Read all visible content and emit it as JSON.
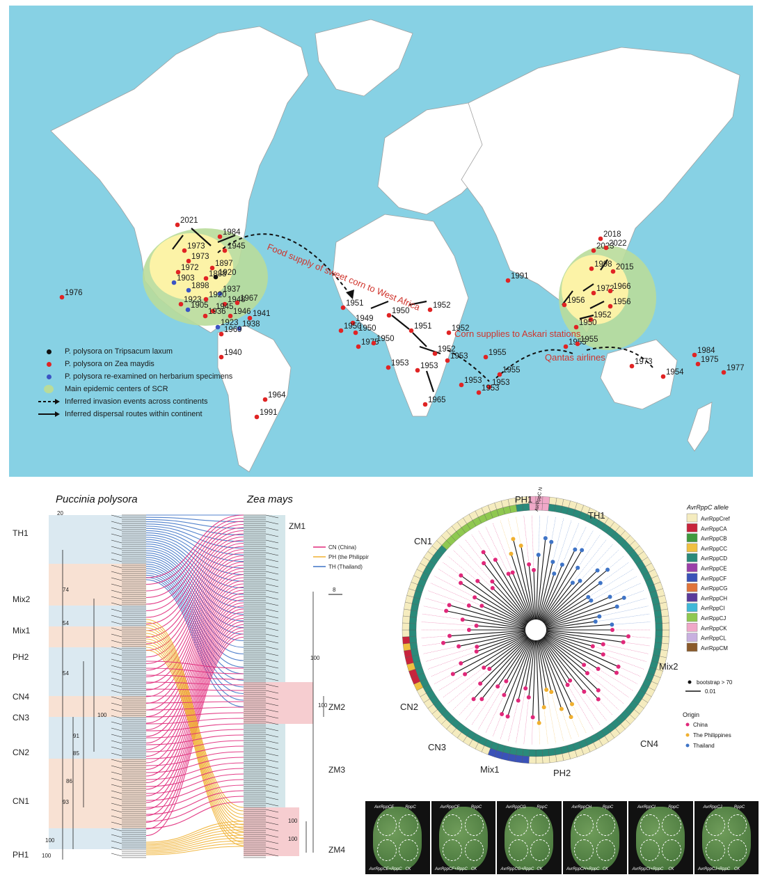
{
  "map": {
    "points": [
      {
        "year": "2021",
        "kind": "red"
      },
      {
        "year": "1984",
        "kind": "red"
      },
      {
        "year": "1973",
        "kind": "red"
      },
      {
        "year": "1945",
        "kind": "red"
      },
      {
        "year": "1973",
        "kind": "red"
      },
      {
        "year": "1897",
        "kind": "red"
      },
      {
        "year": "1972",
        "kind": "red"
      },
      {
        "year": "1888",
        "kind": "red"
      },
      {
        "year": "1920",
        "kind": "black"
      },
      {
        "year": "1903",
        "kind": "blue"
      },
      {
        "year": "1898",
        "kind": "blue"
      },
      {
        "year": "1937",
        "kind": "blue"
      },
      {
        "year": "1923",
        "kind": "red"
      },
      {
        "year": "1920",
        "kind": "red"
      },
      {
        "year": "1948",
        "kind": "red"
      },
      {
        "year": "1967",
        "kind": "red"
      },
      {
        "year": "1905",
        "kind": "blue"
      },
      {
        "year": "1945",
        "kind": "red"
      },
      {
        "year": "1936",
        "kind": "red"
      },
      {
        "year": "1946",
        "kind": "red"
      },
      {
        "year": "1941",
        "kind": "red"
      },
      {
        "year": "1923",
        "kind": "blue"
      },
      {
        "year": "1938",
        "kind": "blue"
      },
      {
        "year": "1969",
        "kind": "red"
      },
      {
        "year": "1976",
        "kind": "red"
      },
      {
        "year": "1940",
        "kind": "red"
      },
      {
        "year": "1964",
        "kind": "red"
      },
      {
        "year": "1991",
        "kind": "red"
      },
      {
        "year": "1951",
        "kind": "red"
      },
      {
        "year": "1949",
        "kind": "red"
      },
      {
        "year": "1950",
        "kind": "red"
      },
      {
        "year": "1950",
        "kind": "red"
      },
      {
        "year": "1975",
        "kind": "red"
      },
      {
        "year": "1950",
        "kind": "red"
      },
      {
        "year": "1950",
        "kind": "red"
      },
      {
        "year": "1952",
        "kind": "red"
      },
      {
        "year": "1951",
        "kind": "red"
      },
      {
        "year": "1952",
        "kind": "red"
      },
      {
        "year": "1952",
        "kind": "red"
      },
      {
        "year": "1953",
        "kind": "red"
      },
      {
        "year": "1953",
        "kind": "red"
      },
      {
        "year": "1953",
        "kind": "red"
      },
      {
        "year": "1953",
        "kind": "red"
      },
      {
        "year": "1965",
        "kind": "red"
      },
      {
        "year": "1955",
        "kind": "red"
      },
      {
        "year": "1955",
        "kind": "red"
      },
      {
        "year": "1953",
        "kind": "red"
      },
      {
        "year": "1953",
        "kind": "red"
      },
      {
        "year": "1991",
        "kind": "red"
      },
      {
        "year": "2018",
        "kind": "red"
      },
      {
        "year": "2023",
        "kind": "red"
      },
      {
        "year": "2022",
        "kind": "red"
      },
      {
        "year": "1998",
        "kind": "red"
      },
      {
        "year": "2015",
        "kind": "red"
      },
      {
        "year": "1956",
        "kind": "red"
      },
      {
        "year": "1972",
        "kind": "red"
      },
      {
        "year": "1966",
        "kind": "red"
      },
      {
        "year": "1956",
        "kind": "red"
      },
      {
        "year": "1952",
        "kind": "red"
      },
      {
        "year": "1950",
        "kind": "red"
      },
      {
        "year": "1955",
        "kind": "red"
      },
      {
        "year": "1955",
        "kind": "red"
      },
      {
        "year": "1973",
        "kind": "red"
      },
      {
        "year": "1954",
        "kind": "red"
      },
      {
        "year": "1984",
        "kind": "red"
      },
      {
        "year": "1975",
        "kind": "red"
      },
      {
        "year": "1977",
        "kind": "red"
      }
    ],
    "annotations": {
      "food_supply": "Food supply of sweet corn to West Africa",
      "corn_supplies": "Corn supplies to Askari stations",
      "qantas": "Qantas airlines"
    },
    "legend": {
      "tripsacum": "P. polysora on Tripsacum laxum",
      "zea": "P. polysora on Zea maydis",
      "herbarium": "P. polysora re-examined on herbarium specimens",
      "epicenter": "Main epidemic centers of SCR",
      "invasion": "Inferred invasion events across continents",
      "dispersal": "Inferred dispersal routes within continent"
    },
    "colors": {
      "ocean": "#87d1e4",
      "red": "#e02424",
      "blue": "#3b54c4",
      "black": "#111111",
      "epicenter": "#b9dc9a",
      "yellow": "#fff3a8",
      "annotation": "#d0342c"
    }
  },
  "tanglegram": {
    "left_title": "Puccinia polysora",
    "right_title": "Zea mays",
    "scale_left": "20",
    "scale_right": "8",
    "left_clades": [
      "TH1",
      "Mix2",
      "Mix1",
      "PH2",
      "CN4",
      "CN3",
      "CN2",
      "CN1",
      "PH1"
    ],
    "right_clades": [
      "ZM1",
      "ZM2",
      "ZM3",
      "ZM4"
    ],
    "bootstrap_left": [
      "74",
      "54",
      "54",
      "100",
      "91",
      "85",
      "86",
      "93",
      "100",
      "100"
    ],
    "bootstrap_right": [
      "100",
      "100",
      "100",
      "100"
    ],
    "legend": [
      {
        "label": "CN (China)",
        "color": "#e0287a"
      },
      {
        "label": "PH (the Philippines)",
        "color": "#f0b030"
      },
      {
        "label": "TH (Thailand)",
        "color": "#3f74c6"
      }
    ]
  },
  "circular_tree": {
    "clades": [
      "PH1",
      "TH1",
      "CN1",
      "CN2",
      "CN3",
      "Mix1",
      "PH2",
      "CN4",
      "Mix2"
    ],
    "center_label": "AvrRppC Non-rare",
    "allele_title": "AvrRppC allele",
    "alleles": [
      {
        "label": "AvrRppCref",
        "color": "#f5ecbf"
      },
      {
        "label": "AvrRppCA",
        "color": "#c8243c"
      },
      {
        "label": "AvrRppCB",
        "color": "#3f9a3f"
      },
      {
        "label": "AvrRppCC",
        "color": "#f0c040"
      },
      {
        "label": "AvrRppCD",
        "color": "#2a8a7a"
      },
      {
        "label": "AvrRppCE",
        "color": "#9a3fa8"
      },
      {
        "label": "AvrRppCF",
        "color": "#3a52b8"
      },
      {
        "label": "AvrRppCG",
        "color": "#e0743a"
      },
      {
        "label": "AvrRppCH",
        "color": "#5a3a9a"
      },
      {
        "label": "AvrRppCI",
        "color": "#40b8d8"
      },
      {
        "label": "AvrRppCJ",
        "color": "#8fc850"
      },
      {
        "label": "AvrRppCK",
        "color": "#f0a8c8"
      },
      {
        "label": "AvrRppCL",
        "color": "#c8b0e0"
      },
      {
        "label": "AvrRppCM",
        "color": "#8a5a2a"
      }
    ],
    "bootstrap_legend": "bootstrap > 70",
    "scale": "0.01",
    "origin_title": "Origin",
    "origins": [
      {
        "label": "China",
        "color": "#e0287a"
      },
      {
        "label": "The Philippines",
        "color": "#f0b030"
      },
      {
        "label": "Thailand",
        "color": "#3f74c6"
      }
    ]
  },
  "leaves": [
    {
      "tl": "AvrRppCE",
      "tr": "RppC",
      "bl": "AvrRppCE+RppC",
      "br": "CK"
    },
    {
      "tl": "AvrRppCF",
      "tr": "RppC",
      "bl": "AvrRppCF+RppC",
      "br": "CK"
    },
    {
      "tl": "AvrRppCG",
      "tr": "RppC",
      "bl": "AvrRppCG+RppC",
      "br": "CK"
    },
    {
      "tl": "AvrRppCH",
      "tr": "RppC",
      "bl": "AvrRppCH+RppC",
      "br": "CK"
    },
    {
      "tl": "AvrRppCI",
      "tr": "RppC",
      "bl": "AvrRppCI+RppC",
      "br": "CK"
    },
    {
      "tl": "AvrRppCJ",
      "tr": "RppC",
      "bl": "AvrRppCJ+RppC",
      "br": "CK"
    }
  ]
}
